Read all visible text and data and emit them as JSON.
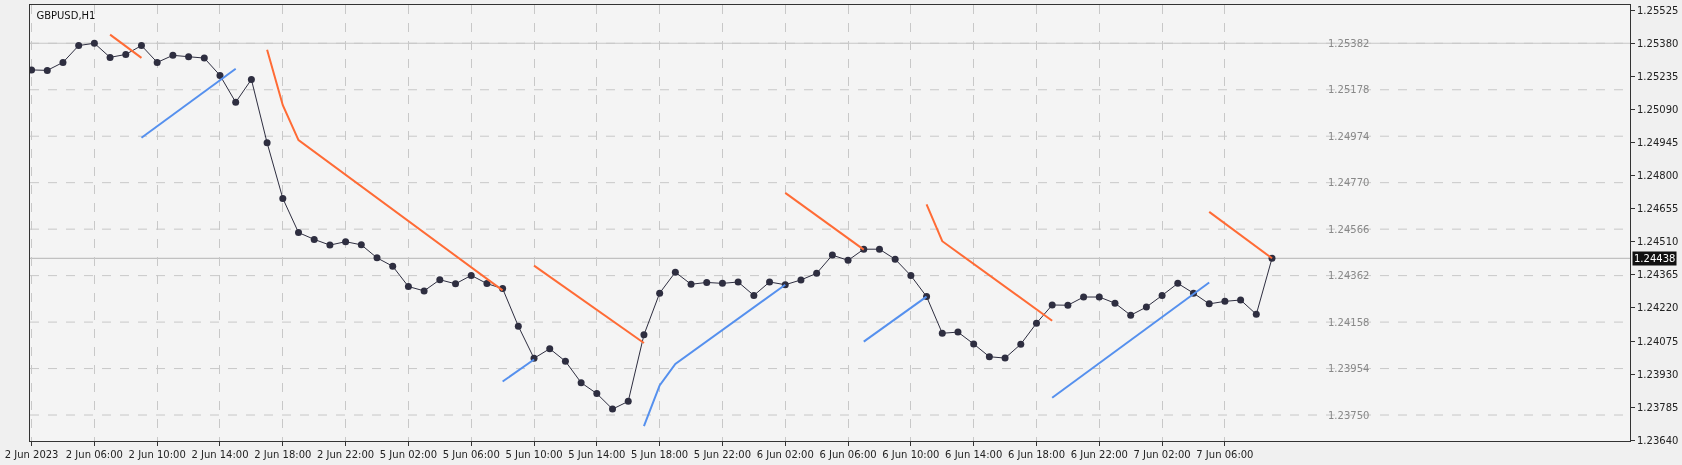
{
  "chart_data": {
    "type": "line",
    "title": "GBPUSD,H1",
    "categories": [
      "2 Jun 2023",
      null,
      null,
      null,
      "2 Jun 06:00",
      null,
      null,
      null,
      "2 Jun 10:00",
      null,
      null,
      null,
      "2 Jun 14:00",
      null,
      null,
      null,
      "2 Jun 18:00",
      null,
      null,
      null,
      "2 Jun 22:00",
      null,
      null,
      null,
      "5 Jun 02:00",
      null,
      null,
      null,
      "5 Jun 06:00",
      null,
      null,
      null,
      "5 Jun 10:00",
      null,
      null,
      null,
      "5 Jun 14:00",
      null,
      null,
      null,
      "5 Jun 18:00",
      null,
      null,
      null,
      "5 Jun 22:00",
      null,
      null,
      null,
      "6 Jun 02:00",
      null,
      null,
      null,
      "6 Jun 06:00",
      null,
      null,
      null,
      "6 Jun 10:00",
      null,
      null,
      null,
      "6 Jun 14:00",
      null,
      null,
      null,
      "6 Jun 18:00",
      null,
      null,
      null,
      "6 Jun 22:00",
      null,
      null,
      null,
      "7 Jun 02:00",
      null,
      null,
      null,
      "7 Jun 06:00",
      null,
      null,
      null,
      null,
      null,
      null,
      null,
      null,
      null,
      null,
      null,
      null,
      null,
      null,
      null,
      null,
      null,
      null,
      null,
      null,
      null,
      null,
      null,
      null,
      null
    ],
    "series": [
      {
        "color": "#2e2e40",
        "marker": "circle",
        "values": [
          1.25265,
          1.25263,
          1.25298,
          1.25372,
          1.25382,
          1.2532,
          1.25333,
          1.25372,
          1.25298,
          1.25329,
          1.25323,
          1.25317,
          1.25241,
          1.25123,
          1.25223,
          1.24945,
          1.24701,
          1.24551,
          1.24521,
          1.24496,
          1.24511,
          1.24497,
          1.2444,
          1.24403,
          1.24314,
          1.24295,
          1.24344,
          1.24326,
          1.24363,
          1.24327,
          1.24305,
          1.2414,
          1.23999,
          1.24041,
          1.23986,
          1.23892,
          1.23844,
          1.23776,
          1.2381,
          1.24102,
          1.24285,
          1.24377,
          1.24324,
          1.24332,
          1.24328,
          1.24334,
          1.24275,
          1.24334,
          1.24322,
          1.24343,
          1.24372,
          1.24452,
          1.24429,
          1.24478,
          1.24478,
          1.24434,
          1.24362,
          1.2427,
          1.24109,
          1.24114,
          1.24062,
          1.24006,
          1.24,
          1.24061,
          1.24153,
          1.24233,
          1.24232,
          1.24268,
          1.24268,
          1.24241,
          1.24188,
          1.24224,
          1.24275,
          1.24328,
          1.24285,
          1.24238,
          1.24249,
          1.24255,
          1.24192,
          1.24438,
          null,
          null,
          null,
          null,
          null,
          null,
          null,
          null,
          null,
          null,
          null,
          null,
          null,
          null,
          null,
          null,
          null,
          null,
          null,
          null,
          null,
          null
        ]
      },
      {
        "color": "#ff6b35",
        "marker": "none",
        "values": [
          null,
          null,
          null,
          null,
          null,
          1.2542,
          null,
          1.25318,
          null,
          null,
          null,
          null,
          null,
          null,
          null,
          null,
          null,
          null,
          null,
          null,
          null,
          null,
          null,
          null,
          null,
          null,
          null,
          null,
          null,
          null,
          null,
          null,
          null,
          null,
          null,
          null,
          null,
          null,
          null,
          null,
          null,
          null,
          null,
          null,
          null,
          null,
          null,
          null,
          null,
          null,
          null,
          null,
          null,
          null,
          null,
          null,
          null,
          null,
          null,
          null,
          null,
          null,
          null,
          null,
          null,
          null,
          null,
          null,
          null,
          null,
          null,
          null,
          null,
          null,
          null,
          null,
          null,
          null,
          null,
          null,
          null,
          null,
          null,
          null,
          null,
          null,
          null,
          null,
          null,
          null,
          null,
          null,
          null,
          null,
          null,
          null,
          null,
          null,
          null,
          null,
          null,
          null
        ]
      },
      {
        "color": "#ff6b35",
        "marker": "none",
        "values": [
          null,
          null,
          null,
          null,
          null,
          null,
          null,
          null,
          null,
          null,
          null,
          null,
          null,
          null,
          null,
          1.25354,
          1.2511,
          1.24957,
          null,
          null,
          null,
          null,
          null,
          null,
          null,
          null,
          null,
          null,
          null,
          null,
          1.24297,
          null,
          null,
          null,
          null,
          null,
          null,
          null,
          null,
          null,
          null,
          null,
          null,
          null,
          null,
          null,
          null,
          null,
          null,
          null,
          null,
          null,
          null,
          null,
          null,
          null,
          null,
          null,
          null,
          null,
          null,
          null,
          null,
          null,
          null,
          null,
          null,
          null,
          null,
          null,
          null,
          null,
          null,
          null,
          null,
          null,
          null,
          null,
          null,
          null,
          null,
          null,
          null,
          null,
          null,
          null,
          null,
          null,
          null,
          null,
          null,
          null,
          null,
          null,
          null,
          null,
          null,
          null,
          null,
          null,
          null,
          null
        ]
      },
      {
        "color": "#ff6b35",
        "marker": "none",
        "values": [
          null,
          null,
          null,
          null,
          null,
          null,
          null,
          null,
          null,
          null,
          null,
          null,
          null,
          null,
          null,
          null,
          null,
          null,
          null,
          null,
          null,
          null,
          null,
          null,
          null,
          null,
          null,
          null,
          null,
          null,
          null,
          null,
          1.24406,
          null,
          null,
          null,
          null,
          null,
          null,
          1.24066,
          null,
          null,
          null,
          null,
          null,
          null,
          null,
          null,
          null,
          null,
          null,
          null,
          null,
          null,
          null,
          null,
          null,
          null,
          null,
          null,
          null,
          null,
          null,
          null,
          null,
          null,
          null,
          null,
          null,
          null,
          null,
          null,
          null,
          null,
          null,
          null,
          null,
          null,
          null,
          null,
          null,
          null,
          null,
          null,
          null,
          null,
          null,
          null,
          null,
          null,
          null,
          null,
          null,
          null,
          null,
          null,
          null,
          null,
          null,
          null,
          null,
          null
        ]
      },
      {
        "color": "#ff6b35",
        "marker": "none",
        "values": [
          null,
          null,
          null,
          null,
          null,
          null,
          null,
          null,
          null,
          null,
          null,
          null,
          null,
          null,
          null,
          null,
          null,
          null,
          null,
          null,
          null,
          null,
          null,
          null,
          null,
          null,
          null,
          null,
          null,
          null,
          null,
          null,
          null,
          null,
          null,
          null,
          null,
          null,
          null,
          null,
          null,
          null,
          null,
          null,
          null,
          null,
          null,
          null,
          1.24725,
          null,
          null,
          null,
          null,
          1.24476,
          null,
          null,
          null,
          null,
          null,
          null,
          null,
          null,
          null,
          null,
          null,
          null,
          null,
          null,
          null,
          null,
          null,
          null,
          null,
          null,
          null,
          null,
          null,
          null,
          null,
          null,
          null,
          null,
          null,
          null,
          null,
          null,
          null,
          null,
          null,
          null,
          null,
          null,
          null,
          null,
          null,
          null,
          null,
          null,
          null,
          null,
          null,
          null
        ]
      },
      {
        "color": "#ff6b35",
        "marker": "none",
        "values": [
          null,
          null,
          null,
          null,
          null,
          null,
          null,
          null,
          null,
          null,
          null,
          null,
          null,
          null,
          null,
          null,
          null,
          null,
          null,
          null,
          null,
          null,
          null,
          null,
          null,
          null,
          null,
          null,
          null,
          null,
          null,
          null,
          null,
          null,
          null,
          null,
          null,
          null,
          null,
          null,
          null,
          null,
          null,
          null,
          null,
          null,
          null,
          null,
          null,
          null,
          null,
          null,
          null,
          null,
          null,
          null,
          null,
          1.24675,
          1.24513,
          null,
          null,
          null,
          null,
          null,
          null,
          1.24164,
          null,
          null,
          null,
          null,
          null,
          null,
          null,
          null,
          null,
          null,
          null,
          null,
          null,
          null,
          null,
          null,
          null,
          null,
          null,
          null,
          null,
          null,
          null,
          null,
          null,
          null,
          null,
          null,
          null,
          null,
          null,
          null,
          null,
          null,
          null,
          null
        ]
      },
      {
        "color": "#ff6b35",
        "marker": "none",
        "values": [
          null,
          null,
          null,
          null,
          null,
          null,
          null,
          null,
          null,
          null,
          null,
          null,
          null,
          null,
          null,
          null,
          null,
          null,
          null,
          null,
          null,
          null,
          null,
          null,
          null,
          null,
          null,
          null,
          null,
          null,
          null,
          null,
          null,
          null,
          null,
          null,
          null,
          null,
          null,
          null,
          null,
          null,
          null,
          null,
          null,
          null,
          null,
          null,
          null,
          null,
          null,
          null,
          null,
          null,
          null,
          null,
          null,
          null,
          null,
          null,
          null,
          null,
          null,
          null,
          null,
          null,
          null,
          null,
          null,
          null,
          null,
          null,
          null,
          null,
          null,
          1.24642,
          null,
          null,
          null,
          1.24438,
          null,
          null,
          null,
          null,
          null,
          null,
          null,
          null,
          null,
          null,
          null,
          null,
          null,
          null,
          null,
          null,
          null,
          null,
          null,
          null,
          null,
          null
        ]
      },
      {
        "color": "#5590ee",
        "marker": "none",
        "values": [
          null,
          null,
          null,
          null,
          null,
          null,
          null,
          1.24967,
          null,
          null,
          null,
          null,
          null,
          1.2527,
          null,
          null,
          null,
          null,
          null,
          null,
          null,
          null,
          null,
          null,
          null,
          null,
          null,
          null,
          null,
          null,
          null,
          null,
          null,
          null,
          null,
          null,
          null,
          null,
          null,
          null,
          null,
          null,
          null,
          null,
          null,
          null,
          null,
          null,
          null,
          null,
          null,
          null,
          null,
          null,
          null,
          null,
          null,
          null,
          null,
          null,
          null,
          null,
          null,
          null,
          null,
          null,
          null,
          null,
          null,
          null,
          null,
          null,
          null,
          null,
          null,
          null,
          null,
          null,
          null,
          null,
          null,
          null,
          null,
          null,
          null,
          null,
          null,
          null,
          null,
          null,
          null,
          null,
          null,
          null,
          null,
          null,
          null,
          null,
          null,
          null,
          null,
          null
        ]
      },
      {
        "color": "#5590ee",
        "marker": "none",
        "values": [
          null,
          null,
          null,
          null,
          null,
          null,
          null,
          null,
          null,
          null,
          null,
          null,
          null,
          null,
          null,
          null,
          null,
          null,
          null,
          null,
          null,
          null,
          null,
          null,
          null,
          null,
          null,
          null,
          null,
          null,
          1.23897,
          null,
          1.23994,
          null,
          null,
          null,
          null,
          null,
          null,
          null,
          null,
          null,
          null,
          null,
          null,
          null,
          null,
          null,
          null,
          null,
          null,
          null,
          null,
          null,
          null,
          null,
          null,
          null,
          null,
          null,
          null,
          null,
          null,
          null,
          null,
          null,
          null,
          null,
          null,
          null,
          null,
          null,
          null,
          null,
          null,
          null,
          null,
          null,
          null,
          null,
          null,
          null,
          null,
          null,
          null,
          null,
          null,
          null,
          null,
          null,
          null,
          null,
          null,
          null,
          null,
          null,
          null,
          null,
          null,
          null,
          null,
          null
        ]
      },
      {
        "color": "#5590ee",
        "marker": "none",
        "values": [
          null,
          null,
          null,
          null,
          null,
          null,
          null,
          null,
          null,
          null,
          null,
          null,
          null,
          null,
          null,
          null,
          null,
          null,
          null,
          null,
          null,
          null,
          null,
          null,
          null,
          null,
          null,
          null,
          null,
          null,
          null,
          null,
          null,
          null,
          null,
          null,
          null,
          null,
          null,
          1.23701,
          1.2388,
          1.23974,
          null,
          null,
          null,
          null,
          null,
          null,
          1.24322,
          null,
          null,
          null,
          null,
          null,
          null,
          null,
          null,
          null,
          null,
          null,
          null,
          null,
          null,
          null,
          null,
          null,
          null,
          null,
          null,
          null,
          null,
          null,
          null,
          null,
          null,
          null,
          null,
          null,
          null,
          null,
          null,
          null,
          null,
          null,
          null,
          null,
          null,
          null,
          null,
          null,
          null,
          null,
          null,
          null,
          null,
          null,
          null,
          null,
          null,
          null,
          null,
          null
        ]
      },
      {
        "color": "#5590ee",
        "marker": "none",
        "values": [
          null,
          null,
          null,
          null,
          null,
          null,
          null,
          null,
          null,
          null,
          null,
          null,
          null,
          null,
          null,
          null,
          null,
          null,
          null,
          null,
          null,
          null,
          null,
          null,
          null,
          null,
          null,
          null,
          null,
          null,
          null,
          null,
          null,
          null,
          null,
          null,
          null,
          null,
          null,
          null,
          null,
          null,
          null,
          null,
          null,
          null,
          null,
          null,
          null,
          null,
          null,
          null,
          null,
          1.24072,
          null,
          null,
          null,
          1.2427,
          null,
          null,
          null,
          null,
          null,
          null,
          null,
          null,
          null,
          null,
          null,
          null,
          null,
          null,
          null,
          null,
          null,
          null,
          null,
          null,
          null,
          null,
          null,
          null,
          null,
          null,
          null,
          null,
          null,
          null,
          null,
          null,
          null,
          null,
          null,
          null,
          null,
          null,
          null,
          null,
          null,
          null,
          null,
          null
        ]
      },
      {
        "color": "#5590ee",
        "marker": "none",
        "values": [
          null,
          null,
          null,
          null,
          null,
          null,
          null,
          null,
          null,
          null,
          null,
          null,
          null,
          null,
          null,
          null,
          null,
          null,
          null,
          null,
          null,
          null,
          null,
          null,
          null,
          null,
          null,
          null,
          null,
          null,
          null,
          null,
          null,
          null,
          null,
          null,
          null,
          null,
          null,
          null,
          null,
          null,
          null,
          null,
          null,
          null,
          null,
          null,
          null,
          null,
          null,
          null,
          null,
          null,
          null,
          null,
          null,
          null,
          null,
          null,
          null,
          null,
          null,
          null,
          null,
          1.23826,
          null,
          null,
          null,
          null,
          null,
          null,
          null,
          null,
          null,
          1.24332,
          null,
          null,
          null,
          null,
          null,
          null,
          null,
          null,
          null,
          null,
          null,
          null,
          null,
          null,
          null,
          null,
          null,
          null,
          null,
          null,
          null,
          null,
          null,
          null,
          null,
          null
        ]
      }
    ],
    "ylim": [
      1.23636,
      1.2555
    ],
    "yticks": [
      1.25525,
      {
        "value": 1.2538,
        "label": "1.25380"
      },
      1.25235,
      {
        "value": 1.2509,
        "label": "1.25090"
      },
      1.24945,
      {
        "value": 1.248,
        "label": "1.24800"
      },
      1.24655,
      {
        "value": 1.2451,
        "label": "1.24510"
      },
      1.24365,
      {
        "value": 1.2422,
        "label": "1.24220"
      },
      1.24075,
      {
        "value": 1.2393,
        "label": "1.23930"
      },
      1.23785,
      {
        "value": 1.2364,
        "label": "1.23640"
      }
    ],
    "y2lim": [
      1.23636,
      1.2555
    ],
    "y2ticks": [
      1.25382,
      1.25178,
      1.24974,
      {
        "value": 1.2477,
        "label": "1.24770"
      },
      1.24566,
      1.24362,
      1.24158,
      1.23954,
      {
        "value": 1.2375,
        "label": "1.23750"
      }
    ],
    "ref_lines": [
      {
        "axis": "y",
        "value": 1.24438,
        "label": "1.24438",
        "color": "#b4b4b4"
      },
      {
        "axis": "y",
        "value": 1.25382,
        "color": "#c8c8c8"
      }
    ],
    "grid": true
  }
}
